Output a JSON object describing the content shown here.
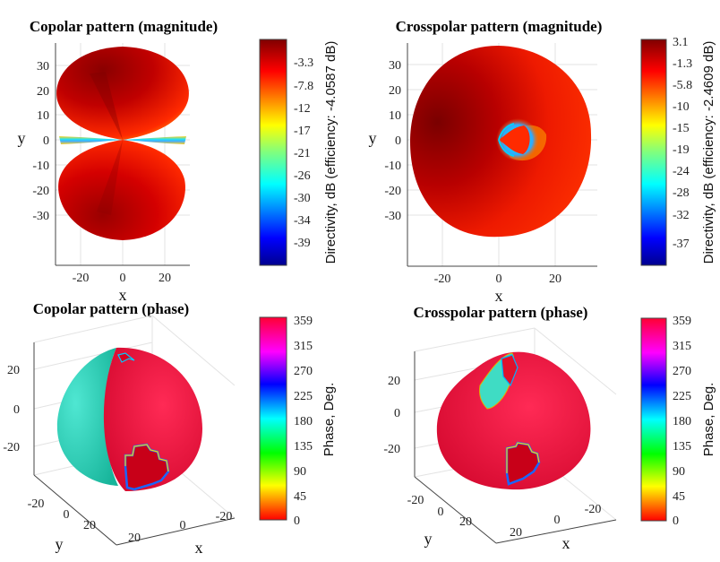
{
  "chart_data": [
    {
      "type": "heatmap",
      "title": "Copolar pattern (magnitude)",
      "xlabel": "x",
      "ylabel": "y",
      "xticks": [
        "-20",
        "0",
        "20"
      ],
      "yticks": [
        "30",
        "20",
        "10",
        "0",
        "-10",
        "-20",
        "-30"
      ],
      "xlim": [
        -28,
        28
      ],
      "ylim": [
        -40,
        40
      ],
      "colorbar": {
        "label": "Directivity, dB (efficiency: -4.0587 dB)",
        "ticks": [
          "-3.3",
          "-7.8",
          "-12",
          "-17",
          "-21",
          "-26",
          "-30",
          "-34",
          "-39"
        ],
        "colormap": "jet"
      }
    },
    {
      "type": "heatmap",
      "title": "Crosspolar pattern (magnitude)",
      "xlabel": "x",
      "ylabel": "y",
      "xticks": [
        "-20",
        "0",
        "20"
      ],
      "yticks": [
        "30",
        "20",
        "10",
        "0",
        "-10",
        "-20",
        "-30"
      ],
      "xlim": [
        -36,
        36
      ],
      "ylim": [
        -40,
        40
      ],
      "colorbar": {
        "label": "Directivity, dB (efficiency: -2.4609 dB)",
        "ticks": [
          "3.1",
          "-1.3",
          "-5.8",
          "-10",
          "-15",
          "-19",
          "-24",
          "-28",
          "-32",
          "-37"
        ],
        "colormap": "jet"
      }
    },
    {
      "type": "heatmap",
      "title": "Copolar pattern (phase)",
      "xlabel": "x",
      "ylabel": "y",
      "zticks": [
        "20",
        "0",
        "-20"
      ],
      "xticks": [
        "-20",
        "0",
        "20"
      ],
      "yticks": [
        "-20",
        "0",
        "20"
      ],
      "colorbar": {
        "label": "Phase, Deg.",
        "ticks": [
          "359",
          "315",
          "270",
          "225",
          "180",
          "135",
          "90",
          "45",
          "0"
        ],
        "colormap": "hsv"
      }
    },
    {
      "type": "heatmap",
      "title": "Crosspolar pattern (phase)",
      "xlabel": "x",
      "ylabel": "y",
      "zticks": [
        "20",
        "0",
        "-20"
      ],
      "xticks": [
        "-20",
        "0",
        "20"
      ],
      "yticks": [
        "-20",
        "0",
        "20"
      ],
      "colorbar": {
        "label": "Phase, Deg.",
        "ticks": [
          "359",
          "315",
          "270",
          "225",
          "180",
          "135",
          "90",
          "45",
          "0"
        ],
        "colormap": "hsv"
      }
    }
  ]
}
